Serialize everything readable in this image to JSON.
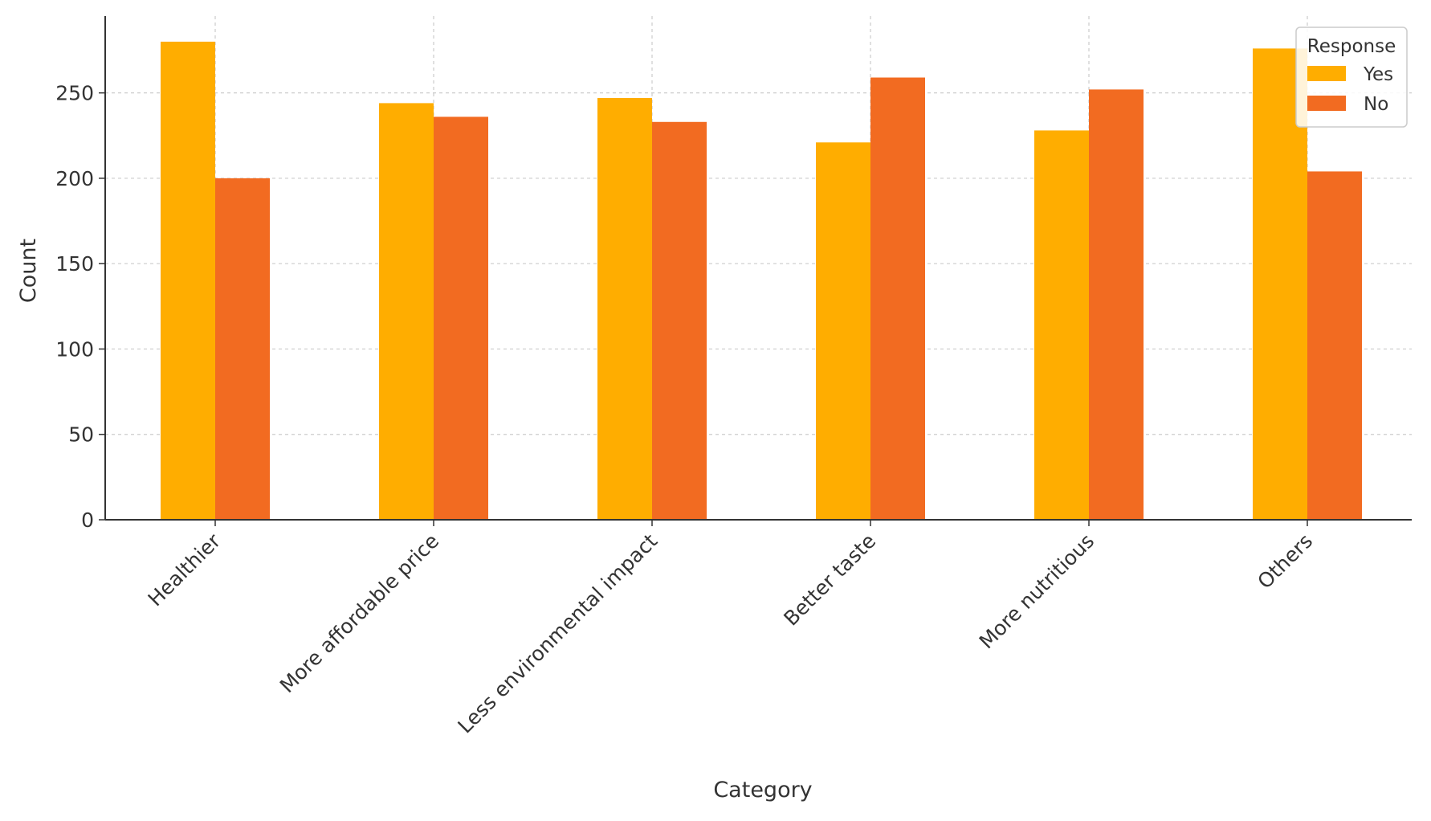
{
  "chart_data": {
    "type": "bar",
    "title": "",
    "xlabel": "Category",
    "ylabel": "Count",
    "ylim": [
      0,
      295
    ],
    "yticks": [
      0,
      50,
      100,
      150,
      200,
      250
    ],
    "grid": true,
    "legend": {
      "title": "Response",
      "placement": "top-right"
    },
    "categories": [
      "Healthier",
      "More affordable price",
      "Less environmental impact",
      "Better taste",
      "More nutritious",
      "Others"
    ],
    "series": [
      {
        "name": "Yes",
        "color": "#FFAD00",
        "values": [
          280,
          244,
          247,
          221,
          228,
          276
        ]
      },
      {
        "name": "No",
        "color": "#F26B21",
        "values": [
          200,
          236,
          233,
          259,
          252,
          204
        ]
      }
    ]
  }
}
